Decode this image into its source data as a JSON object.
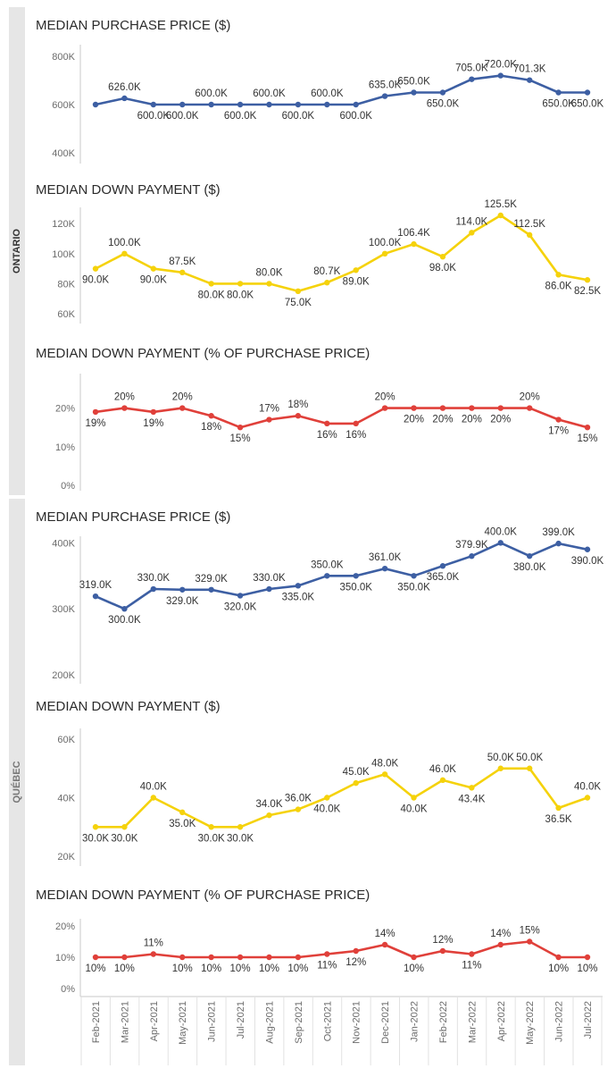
{
  "regions": [
    {
      "label": "ONTARIO"
    },
    {
      "label": "QUÉBEC"
    }
  ],
  "colors": {
    "price": "#3d5fa3",
    "down_dollar": "#f5d20b",
    "down_pct": "#e0403a",
    "axis": "#c8c8c8",
    "tick_text": "#6b6b6b",
    "label_text": "#333333",
    "title_text": "#2b2b2b",
    "sidebar": "#e6e6e6"
  },
  "x_labels": [
    "Feb-2021",
    "Mar-2021",
    "Apr-2021",
    "May-2021",
    "Jun-2021",
    "Jul-2021",
    "Aug-2021",
    "Sep-2021",
    "Oct-2021",
    "Nov-2021",
    "Dec-2021",
    "Jan-2022",
    "Feb-2022",
    "Mar-2022",
    "Apr-2022",
    "May-2022",
    "Jun-2022",
    "Jul-2022"
  ],
  "chart_data": [
    {
      "type": "line",
      "region": "ONTARIO",
      "title": "MEDIAN PURCHASE PRICE ($)",
      "color_key": "price",
      "categories": [
        "Feb-2021",
        "Mar-2021",
        "Apr-2021",
        "May-2021",
        "Jun-2021",
        "Jul-2021",
        "Aug-2021",
        "Sep-2021",
        "Oct-2021",
        "Nov-2021",
        "Dec-2021",
        "Jan-2022",
        "Feb-2022",
        "Mar-2022",
        "Apr-2022",
        "May-2022",
        "Jun-2022",
        "Jul-2022"
      ],
      "values": [
        600000,
        626000,
        600000,
        600000,
        600000,
        600000,
        600000,
        600000,
        600000,
        600000,
        635000,
        650000,
        650000,
        705000,
        720000,
        701300,
        650000,
        650000
      ],
      "data_labels": [
        "",
        "626.0K",
        "600.0K",
        "600.0K",
        "600.0K",
        "600.0K",
        "600.0K",
        "600.0K",
        "600.0K",
        "600.0K",
        "635.0K",
        "650.0K",
        "650.0K",
        "705.0K",
        "720.0K",
        "701.3K",
        "650.0K",
        "650.0K"
      ],
      "label_pos": [
        "",
        "above",
        "below",
        "below",
        "above",
        "below",
        "above",
        "below",
        "above",
        "below",
        "above",
        "above",
        "below",
        "above",
        "above",
        "above",
        "below",
        "below"
      ],
      "ylim": [
        400000,
        800000
      ],
      "yticks": [
        400000,
        600000,
        800000
      ],
      "ytick_labels": [
        "400K",
        "600K",
        "800K"
      ]
    },
    {
      "type": "line",
      "region": "ONTARIO",
      "title": "MEDIAN DOWN PAYMENT ($)",
      "color_key": "down_dollar",
      "categories": [
        "Feb-2021",
        "Mar-2021",
        "Apr-2021",
        "May-2021",
        "Jun-2021",
        "Jul-2021",
        "Aug-2021",
        "Sep-2021",
        "Oct-2021",
        "Nov-2021",
        "Dec-2021",
        "Jan-2022",
        "Feb-2022",
        "Mar-2022",
        "Apr-2022",
        "May-2022",
        "Jun-2022",
        "Jul-2022"
      ],
      "values": [
        90000,
        100000,
        90000,
        87500,
        80000,
        80000,
        80000,
        75000,
        80700,
        89000,
        100000,
        106400,
        98000,
        114000,
        125500,
        112500,
        86000,
        82500
      ],
      "data_labels": [
        "90.0K",
        "100.0K",
        "90.0K",
        "87.5K",
        "80.0K",
        "80.0K",
        "80.0K",
        "75.0K",
        "80.7K",
        "89.0K",
        "100.0K",
        "106.4K",
        "98.0K",
        "114.0K",
        "125.5K",
        "112.5K",
        "86.0K",
        "82.5K"
      ],
      "label_pos": [
        "below",
        "above",
        "below",
        "above",
        "below",
        "below",
        "above",
        "below",
        "above",
        "below",
        "above",
        "above",
        "below",
        "above",
        "above",
        "above",
        "below",
        "below"
      ],
      "ylim": [
        60000,
        125500
      ],
      "yticks": [
        60000,
        80000,
        100000,
        120000
      ],
      "ytick_labels": [
        "60K",
        "80K",
        "100K",
        "120K"
      ]
    },
    {
      "type": "line",
      "region": "ONTARIO",
      "title": "MEDIAN DOWN PAYMENT (% OF PURCHASE PRICE)",
      "color_key": "down_pct",
      "categories": [
        "Feb-2021",
        "Mar-2021",
        "Apr-2021",
        "May-2021",
        "Jun-2021",
        "Jul-2021",
        "Aug-2021",
        "Sep-2021",
        "Oct-2021",
        "Nov-2021",
        "Dec-2021",
        "Jan-2022",
        "Feb-2022",
        "Mar-2022",
        "Apr-2022",
        "May-2022",
        "Jun-2022",
        "Jul-2022"
      ],
      "values": [
        19,
        20,
        19,
        20,
        18,
        15,
        17,
        18,
        16,
        16,
        20,
        20,
        20,
        20,
        20,
        20,
        17,
        15
      ],
      "data_labels": [
        "19%",
        "20%",
        "19%",
        "20%",
        "18%",
        "15%",
        "17%",
        "18%",
        "16%",
        "16%",
        "20%",
        "20%",
        "20%",
        "20%",
        "20%",
        "20%",
        "17%",
        "15%"
      ],
      "label_pos": [
        "below",
        "above",
        "below",
        "above",
        "below",
        "below",
        "above",
        "above",
        "below",
        "below",
        "above",
        "below",
        "below",
        "below",
        "below",
        "above",
        "below",
        "below"
      ],
      "ylim": [
        0,
        28
      ],
      "yticks": [
        0,
        10,
        20
      ],
      "ytick_labels": [
        "0%",
        "10%",
        "20%"
      ]
    },
    {
      "type": "line",
      "region": "QUÉBEC",
      "title": "MEDIAN PURCHASE PRICE ($)",
      "color_key": "price",
      "categories": [
        "Feb-2021",
        "Mar-2021",
        "Apr-2021",
        "May-2021",
        "Jun-2021",
        "Jul-2021",
        "Aug-2021",
        "Sep-2021",
        "Oct-2021",
        "Nov-2021",
        "Dec-2021",
        "Jan-2022",
        "Feb-2022",
        "Mar-2022",
        "Apr-2022",
        "May-2022",
        "Jun-2022",
        "Jul-2022"
      ],
      "values": [
        319000,
        300000,
        330000,
        329000,
        329000,
        320000,
        330000,
        335000,
        350000,
        350000,
        361000,
        350000,
        365000,
        379900,
        400000,
        380000,
        399000,
        390000
      ],
      "data_labels": [
        "319.0K",
        "300.0K",
        "330.0K",
        "329.0K",
        "329.0K",
        "320.0K",
        "330.0K",
        "335.0K",
        "350.0K",
        "350.0K",
        "361.0K",
        "350.0K",
        "365.0K",
        "379.9K",
        "400.0K",
        "380.0K",
        "399.0K",
        "390.0K"
      ],
      "label_pos": [
        "above",
        "below",
        "above",
        "below",
        "above",
        "below",
        "above",
        "below",
        "above",
        "below",
        "above",
        "below",
        "below",
        "above",
        "above",
        "below",
        "above",
        "below"
      ],
      "ylim": [
        200000,
        410000
      ],
      "yticks": [
        200000,
        300000,
        400000
      ],
      "ytick_labels": [
        "200K",
        "300K",
        "400K"
      ]
    },
    {
      "type": "line",
      "region": "QUÉBEC",
      "title": "MEDIAN DOWN PAYMENT ($)",
      "color_key": "down_dollar",
      "categories": [
        "Feb-2021",
        "Mar-2021",
        "Apr-2021",
        "May-2021",
        "Jun-2021",
        "Jul-2021",
        "Aug-2021",
        "Sep-2021",
        "Oct-2021",
        "Nov-2021",
        "Dec-2021",
        "Jan-2022",
        "Feb-2022",
        "Mar-2022",
        "Apr-2022",
        "May-2022",
        "Jun-2022",
        "Jul-2022"
      ],
      "values": [
        30000,
        30000,
        40000,
        35000,
        30000,
        30000,
        34000,
        36000,
        40000,
        45000,
        48000,
        40000,
        46000,
        43400,
        50000,
        50000,
        36500,
        40000
      ],
      "data_labels": [
        "30.0K",
        "30.0K",
        "40.0K",
        "35.0K",
        "30.0K",
        "30.0K",
        "34.0K",
        "36.0K",
        "40.0K",
        "45.0K",
        "48.0K",
        "40.0K",
        "46.0K",
        "43.4K",
        "50.0K",
        "50.0K",
        "36.5K",
        "40.0K"
      ],
      "label_pos": [
        "below",
        "below",
        "above",
        "below",
        "below",
        "below",
        "above",
        "above",
        "below",
        "above",
        "above",
        "below",
        "above",
        "below",
        "above",
        "above",
        "below",
        "above"
      ],
      "ylim": [
        20000,
        60000
      ],
      "yticks": [
        20000,
        40000,
        60000
      ],
      "ytick_labels": [
        "20K",
        "40K",
        "60K"
      ]
    },
    {
      "type": "line",
      "region": "QUÉBEC",
      "title": "MEDIAN DOWN PAYMENT (% OF PURCHASE PRICE)",
      "color_key": "down_pct",
      "categories": [
        "Feb-2021",
        "Mar-2021",
        "Apr-2021",
        "May-2021",
        "Jun-2021",
        "Jul-2021",
        "Aug-2021",
        "Sep-2021",
        "Oct-2021",
        "Nov-2021",
        "Dec-2021",
        "Jan-2022",
        "Feb-2022",
        "Mar-2022",
        "Apr-2022",
        "May-2022",
        "Jun-2022",
        "Jul-2022"
      ],
      "values": [
        10,
        10,
        11,
        10,
        10,
        10,
        10,
        10,
        11,
        12,
        14,
        10,
        12,
        11,
        14,
        15,
        10,
        10
      ],
      "data_labels": [
        "10%",
        "10%",
        "11%",
        "10%",
        "10%",
        "10%",
        "10%",
        "10%",
        "11%",
        "12%",
        "14%",
        "10%",
        "12%",
        "11%",
        "14%",
        "15%",
        "10%",
        "10%"
      ],
      "label_pos": [
        "below",
        "below",
        "above",
        "below",
        "below",
        "below",
        "below",
        "below",
        "below",
        "below",
        "above",
        "below",
        "above",
        "below",
        "above",
        "above",
        "below",
        "below"
      ],
      "ylim": [
        0,
        22
      ],
      "yticks": [
        0,
        10,
        20
      ],
      "ytick_labels": [
        "0%",
        "10%",
        "20%"
      ]
    }
  ]
}
